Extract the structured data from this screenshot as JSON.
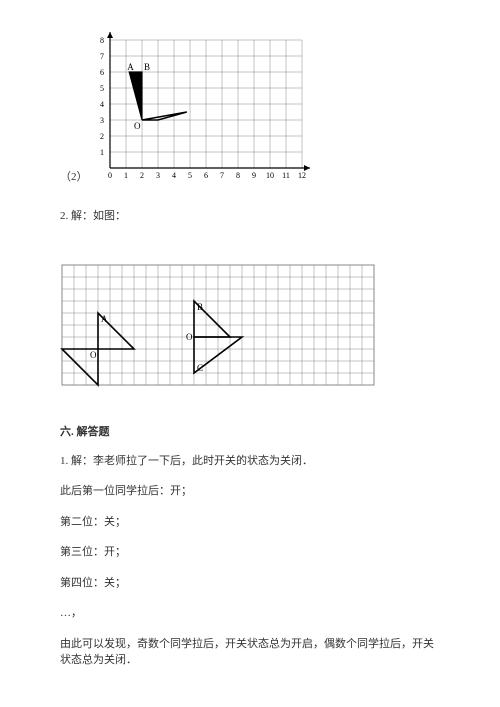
{
  "figure1": {
    "prefix": "（2）",
    "xticks": [
      "0",
      "1",
      "2",
      "3",
      "4",
      "5",
      "6",
      "7",
      "8",
      "9",
      "10",
      "11",
      "12"
    ],
    "yticks": [
      "1",
      "2",
      "3",
      "4",
      "5",
      "6",
      "7",
      "8"
    ],
    "grid_cols": 12,
    "grid_rows": 8,
    "cell": 16,
    "point_label_A": "A",
    "point_label_B": "B",
    "point_label_O": "O",
    "grid_color": "#888888",
    "axis_color": "#000000",
    "shape_color": "#000000",
    "A": [
      1.2,
      6
    ],
    "B": [
      2,
      6
    ],
    "O": [
      2,
      3
    ],
    "tri2_p2": [
      3,
      3
    ],
    "tri2_p3": [
      4.8,
      3.5
    ]
  },
  "text1": "2. 解：如图：",
  "figure2": {
    "grid_cols": 26,
    "grid_rows": 10,
    "cell": 12,
    "grid_color": "#888888",
    "shape_color": "#000000",
    "label_A": "A",
    "label_O1": "O",
    "label_B": "B",
    "label_O2": "O",
    "label_C": "C",
    "tri1": {
      "O": [
        3,
        7
      ],
      "A": [
        3,
        4
      ],
      "P": [
        6,
        7
      ]
    },
    "tri1r": {
      "O": [
        3,
        7
      ],
      "P1": [
        0,
        7
      ],
      "P2": [
        3,
        10
      ]
    },
    "tri2": {
      "O": [
        11,
        6
      ],
      "B": [
        11,
        3
      ],
      "P": [
        14,
        6
      ]
    },
    "tri2r": {
      "O": [
        11,
        6
      ],
      "C": [
        11,
        9
      ],
      "P": [
        15,
        6
      ]
    }
  },
  "section6": "六. 解答题",
  "lines": {
    "l1": "1. 解：李老师拉了一下后，此时开关的状态为关闭．",
    "l2": "此后第一位同学拉后：开；",
    "l3": "第二位：关；",
    "l4": "第三位：开；",
    "l5": "第四位：关；",
    "l6": "…，",
    "l7": "由此可以发现，奇数个同学拉后，开关状态总为开启，偶数个同学拉后，开关状态总为关闭．"
  }
}
